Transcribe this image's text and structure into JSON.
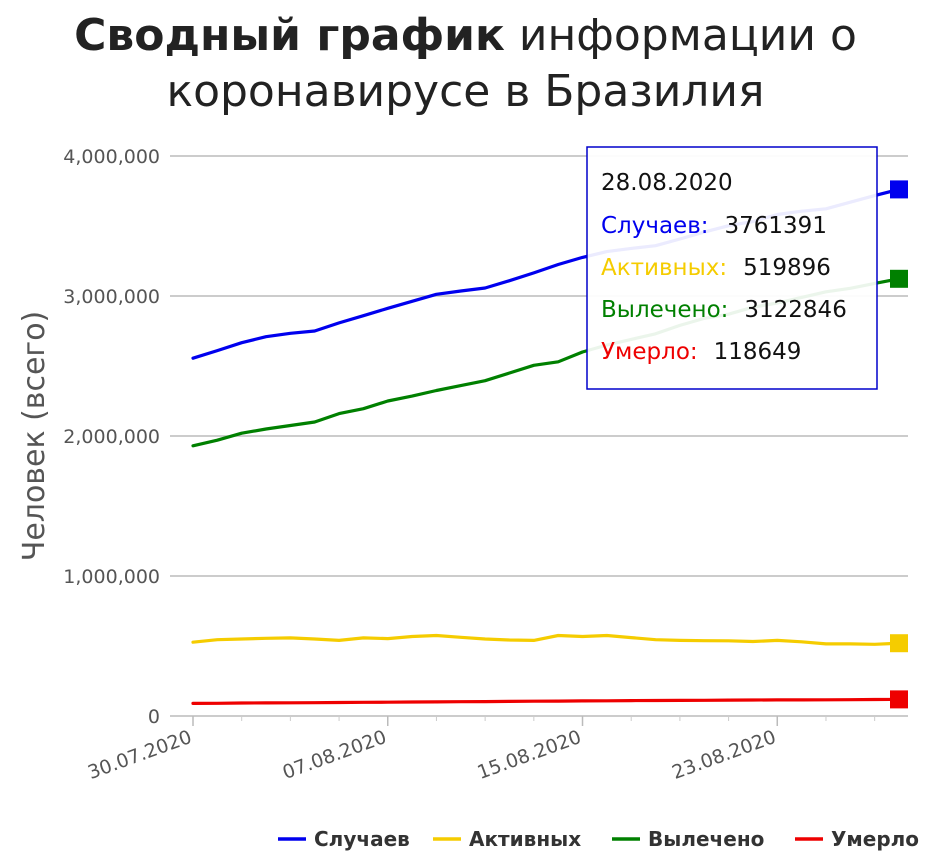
{
  "title": {
    "bold": "Сводный график",
    "rest": " информации о коронавирусе в Бразилия"
  },
  "chart_data": {
    "type": "line",
    "ylabel": "Человек (всего)",
    "ylim": [
      0,
      4000000
    ],
    "y_ticks": [
      0,
      1000000,
      2000000,
      3000000,
      4000000
    ],
    "y_tick_labels": [
      "0",
      "1,000,000",
      "2,000,000",
      "3,000,000",
      "4,000,000"
    ],
    "x_start": "30.07.2020",
    "x_end": "28.08.2020",
    "x_tick_labels": [
      "30.07.2020",
      "07.08.2020",
      "15.08.2020",
      "23.08.2020"
    ],
    "grid": true,
    "legend_position": "bottom-right",
    "series": [
      {
        "name": "Случаев",
        "color": "#0000ee",
        "values": [
          2555518,
          2610102,
          2666298,
          2709638,
          2733677,
          2750318,
          2808076,
          2859073,
          2912212,
          2962442,
          3012412,
          3035582,
          3057470,
          3109630,
          3164785,
          3224876,
          3275520,
          3317096,
          3340197,
          3359570,
          3407354,
          3456652,
          3501975,
          3532330,
          3582362,
          3605783,
          3622861,
          3669995,
          3717156,
          3761391
        ]
      },
      {
        "name": "Активных",
        "color": "#f5cc00",
        "values": [
          527000,
          545000,
          550000,
          555000,
          558000,
          550000,
          540000,
          558000,
          553000,
          568000,
          575000,
          562000,
          550000,
          543000,
          540000,
          575000,
          568000,
          575000,
          560000,
          545000,
          540000,
          538000,
          537000,
          532000,
          540000,
          530000,
          515000,
          515000,
          512000,
          519896
        ]
      },
      {
        "name": "Вылечено",
        "color": "#008000",
        "values": [
          1930000,
          1970000,
          2020000,
          2050000,
          2075000,
          2100000,
          2160000,
          2195000,
          2250000,
          2285000,
          2325000,
          2360000,
          2395000,
          2450000,
          2505000,
          2530000,
          2600000,
          2650000,
          2690000,
          2730000,
          2790000,
          2840000,
          2870000,
          2920000,
          2950000,
          2990000,
          3030000,
          3055000,
          3090000,
          3122846
        ]
      },
      {
        "name": "Умерло",
        "color": "#ee0000",
        "values": [
          90000,
          91000,
          92500,
          93500,
          94200,
          94900,
          96500,
          97700,
          98500,
          99800,
          101000,
          102000,
          103000,
          104400,
          105500,
          106500,
          107800,
          108600,
          109700,
          110600,
          111200,
          112300,
          113400,
          114000,
          114800,
          115300,
          116000,
          116700,
          117700,
          118649
        ]
      }
    ],
    "tooltip": {
      "date": "28.08.2020",
      "rows": [
        {
          "label": "Случаев:",
          "value": "3761391",
          "color": "#0000ee"
        },
        {
          "label": "Активных:",
          "value": "519896",
          "color": "#f5cc00"
        },
        {
          "label": "Вылечено:",
          "value": "3122846",
          "color": "#008000"
        },
        {
          "label": "Умерло:",
          "value": "118649",
          "color": "#ee0000"
        }
      ]
    }
  }
}
